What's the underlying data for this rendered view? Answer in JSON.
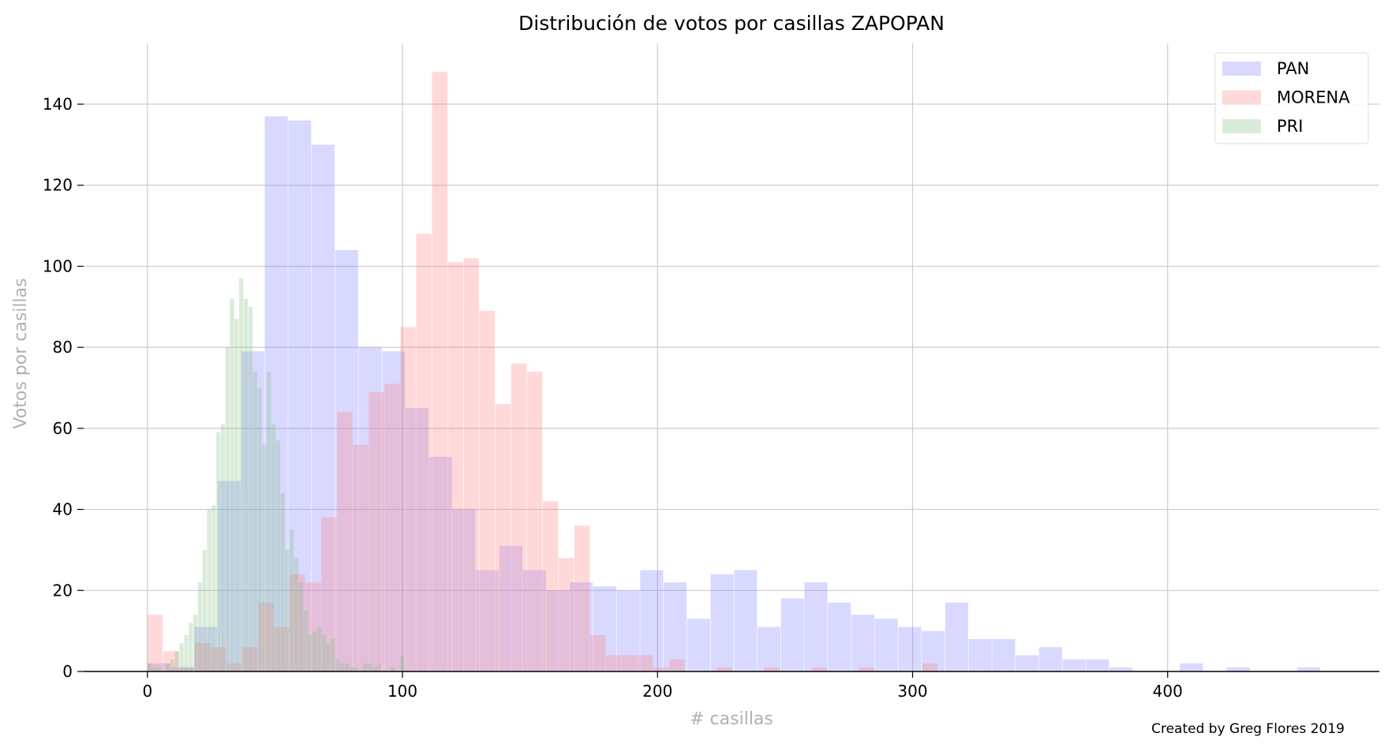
{
  "chart_data": {
    "type": "bar",
    "title": "Distribución de votos por casillas ZAPOPAN",
    "xlabel": "#  casillas",
    "ylabel": "Votos por casillas",
    "xlim": [
      -25,
      483
    ],
    "ylim": [
      0,
      155
    ],
    "xticks": [
      0,
      100,
      200,
      300,
      400
    ],
    "yticks": [
      0,
      20,
      40,
      60,
      80,
      100,
      120,
      140
    ],
    "grid": true,
    "legend_position": "top-right",
    "series": [
      {
        "name": "PAN",
        "color": "#8080ff",
        "opacity": 0.3,
        "bins": [
          [
            0,
            9.2,
            2
          ],
          [
            9.2,
            18.4,
            1
          ],
          [
            18.4,
            27.6,
            11
          ],
          [
            27.6,
            36.8,
            47
          ],
          [
            36.8,
            46.0,
            79
          ],
          [
            46.0,
            55.2,
            137
          ],
          [
            55.2,
            64.4,
            136
          ],
          [
            64.4,
            73.6,
            130
          ],
          [
            73.6,
            82.8,
            104
          ],
          [
            82.8,
            92.0,
            80
          ],
          [
            92.0,
            101.2,
            79
          ],
          [
            101.2,
            110.4,
            65
          ],
          [
            110.4,
            119.6,
            53
          ],
          [
            119.6,
            128.8,
            40
          ],
          [
            128.8,
            138.0,
            25
          ],
          [
            138.0,
            147.2,
            31
          ],
          [
            147.2,
            156.4,
            25
          ],
          [
            156.4,
            165.6,
            20
          ],
          [
            165.6,
            174.8,
            22
          ],
          [
            174.8,
            184.0,
            21
          ],
          [
            184.0,
            193.2,
            20
          ],
          [
            193.2,
            202.4,
            25
          ],
          [
            202.4,
            211.6,
            22
          ],
          [
            211.6,
            220.8,
            13
          ],
          [
            220.8,
            230.0,
            24
          ],
          [
            230.0,
            239.2,
            25
          ],
          [
            239.2,
            248.4,
            11
          ],
          [
            248.4,
            257.6,
            18
          ],
          [
            257.6,
            266.8,
            22
          ],
          [
            266.8,
            276.0,
            17
          ],
          [
            276.0,
            285.2,
            14
          ],
          [
            285.2,
            294.4,
            13
          ],
          [
            294.4,
            303.6,
            11
          ],
          [
            303.6,
            312.8,
            10
          ],
          [
            312.8,
            322.0,
            17
          ],
          [
            322.0,
            331.2,
            8
          ],
          [
            331.2,
            340.4,
            8
          ],
          [
            340.4,
            349.6,
            4
          ],
          [
            349.6,
            358.8,
            6
          ],
          [
            358.8,
            368.0,
            3
          ],
          [
            368.0,
            377.2,
            3
          ],
          [
            377.2,
            386.4,
            1
          ],
          [
            386.4,
            395.6,
            0
          ],
          [
            395.6,
            404.8,
            0
          ],
          [
            404.8,
            414.0,
            2
          ],
          [
            414.0,
            423.2,
            0
          ],
          [
            423.2,
            432.4,
            1
          ],
          [
            432.4,
            441.6,
            0
          ],
          [
            441.6,
            450.8,
            0
          ],
          [
            450.8,
            460.0,
            1
          ]
        ]
      },
      {
        "name": "MORENA",
        "color": "#ff8080",
        "opacity": 0.3,
        "bins": [
          [
            0,
            6.2,
            14
          ],
          [
            6.2,
            12.4,
            5
          ],
          [
            12.4,
            18.6,
            1
          ],
          [
            18.6,
            24.8,
            7
          ],
          [
            24.8,
            31.0,
            6
          ],
          [
            31.0,
            37.2,
            2
          ],
          [
            37.2,
            43.4,
            6
          ],
          [
            43.4,
            49.6,
            17
          ],
          [
            49.6,
            55.8,
            11
          ],
          [
            55.8,
            62.0,
            24
          ],
          [
            62.0,
            68.2,
            22
          ],
          [
            68.2,
            74.4,
            38
          ],
          [
            74.4,
            80.6,
            64
          ],
          [
            80.6,
            86.8,
            56
          ],
          [
            86.8,
            93.0,
            69
          ],
          [
            93.0,
            99.2,
            71
          ],
          [
            99.2,
            105.4,
            85
          ],
          [
            105.4,
            111.6,
            108
          ],
          [
            111.6,
            117.8,
            148
          ],
          [
            117.8,
            124.0,
            101
          ],
          [
            124.0,
            130.2,
            102
          ],
          [
            130.2,
            136.4,
            89
          ],
          [
            136.4,
            142.6,
            66
          ],
          [
            142.6,
            148.8,
            76
          ],
          [
            148.8,
            155.0,
            74
          ],
          [
            155.0,
            161.2,
            42
          ],
          [
            161.2,
            167.4,
            28
          ],
          [
            167.4,
            173.6,
            36
          ],
          [
            173.6,
            179.8,
            9
          ],
          [
            179.8,
            186.0,
            4
          ],
          [
            186.0,
            192.2,
            4
          ],
          [
            192.2,
            198.4,
            4
          ],
          [
            198.4,
            204.6,
            1
          ],
          [
            204.6,
            210.8,
            3
          ],
          [
            210.8,
            217.0,
            0
          ],
          [
            217.0,
            223.2,
            0
          ],
          [
            223.2,
            229.4,
            1
          ],
          [
            229.4,
            235.6,
            0
          ],
          [
            235.6,
            241.8,
            0
          ],
          [
            241.8,
            248.0,
            1
          ],
          [
            248.0,
            254.2,
            0
          ],
          [
            254.2,
            260.4,
            0
          ],
          [
            260.4,
            266.6,
            1
          ],
          [
            266.6,
            272.8,
            0
          ],
          [
            272.8,
            279.0,
            0
          ],
          [
            279.0,
            285.2,
            1
          ],
          [
            285.2,
            291.4,
            0
          ],
          [
            291.4,
            297.6,
            0
          ],
          [
            297.6,
            303.8,
            0
          ],
          [
            303.8,
            310.0,
            2
          ]
        ]
      },
      {
        "name": "PRI",
        "color": "#80c080",
        "opacity": 0.3,
        "bins": [
          [
            0.0,
            1.8,
            2
          ],
          [
            1.8,
            3.6,
            1
          ],
          [
            3.6,
            5.4,
            1
          ],
          [
            5.4,
            7.2,
            0
          ],
          [
            7.2,
            9.0,
            2
          ],
          [
            9.0,
            10.8,
            3
          ],
          [
            10.8,
            12.6,
            5
          ],
          [
            12.6,
            14.4,
            7
          ],
          [
            14.4,
            16.2,
            9
          ],
          [
            16.2,
            18.0,
            12
          ],
          [
            18.0,
            19.8,
            14
          ],
          [
            19.8,
            21.6,
            22
          ],
          [
            21.6,
            23.4,
            30
          ],
          [
            23.4,
            25.2,
            40
          ],
          [
            25.2,
            27.0,
            41
          ],
          [
            27.0,
            28.8,
            59
          ],
          [
            28.8,
            30.6,
            61
          ],
          [
            30.6,
            32.4,
            80
          ],
          [
            32.4,
            34.2,
            92
          ],
          [
            34.2,
            36.0,
            87
          ],
          [
            36.0,
            37.8,
            97
          ],
          [
            37.8,
            39.6,
            92
          ],
          [
            39.6,
            41.4,
            90
          ],
          [
            41.4,
            43.2,
            74
          ],
          [
            43.2,
            45.0,
            70
          ],
          [
            45.0,
            46.8,
            56
          ],
          [
            46.8,
            48.6,
            74
          ],
          [
            48.6,
            50.4,
            61
          ],
          [
            50.4,
            52.2,
            57
          ],
          [
            52.2,
            54.0,
            44
          ],
          [
            54.0,
            55.8,
            30
          ],
          [
            55.8,
            57.6,
            35
          ],
          [
            57.6,
            59.4,
            28
          ],
          [
            59.4,
            61.2,
            22
          ],
          [
            61.2,
            63.0,
            15
          ],
          [
            63.0,
            64.8,
            9
          ],
          [
            64.8,
            66.6,
            10
          ],
          [
            66.6,
            68.4,
            11
          ],
          [
            68.4,
            70.2,
            9
          ],
          [
            70.2,
            72.0,
            7
          ],
          [
            72.0,
            73.8,
            8
          ],
          [
            73.8,
            75.6,
            3
          ],
          [
            75.6,
            77.4,
            2
          ],
          [
            77.4,
            79.2,
            2
          ],
          [
            79.2,
            81.0,
            1
          ],
          [
            81.0,
            82.8,
            1
          ],
          [
            82.8,
            84.6,
            0
          ],
          [
            84.6,
            86.4,
            2
          ],
          [
            86.4,
            88.2,
            2
          ],
          [
            88.2,
            90.0,
            1
          ],
          [
            90.0,
            91.8,
            2
          ],
          [
            91.8,
            93.6,
            0
          ],
          [
            93.6,
            95.4,
            0
          ],
          [
            95.4,
            97.2,
            1
          ],
          [
            97.2,
            99.0,
            0
          ],
          [
            99.0,
            100.8,
            4
          ]
        ]
      }
    ]
  },
  "credit": "Created by Greg Flores   2019"
}
